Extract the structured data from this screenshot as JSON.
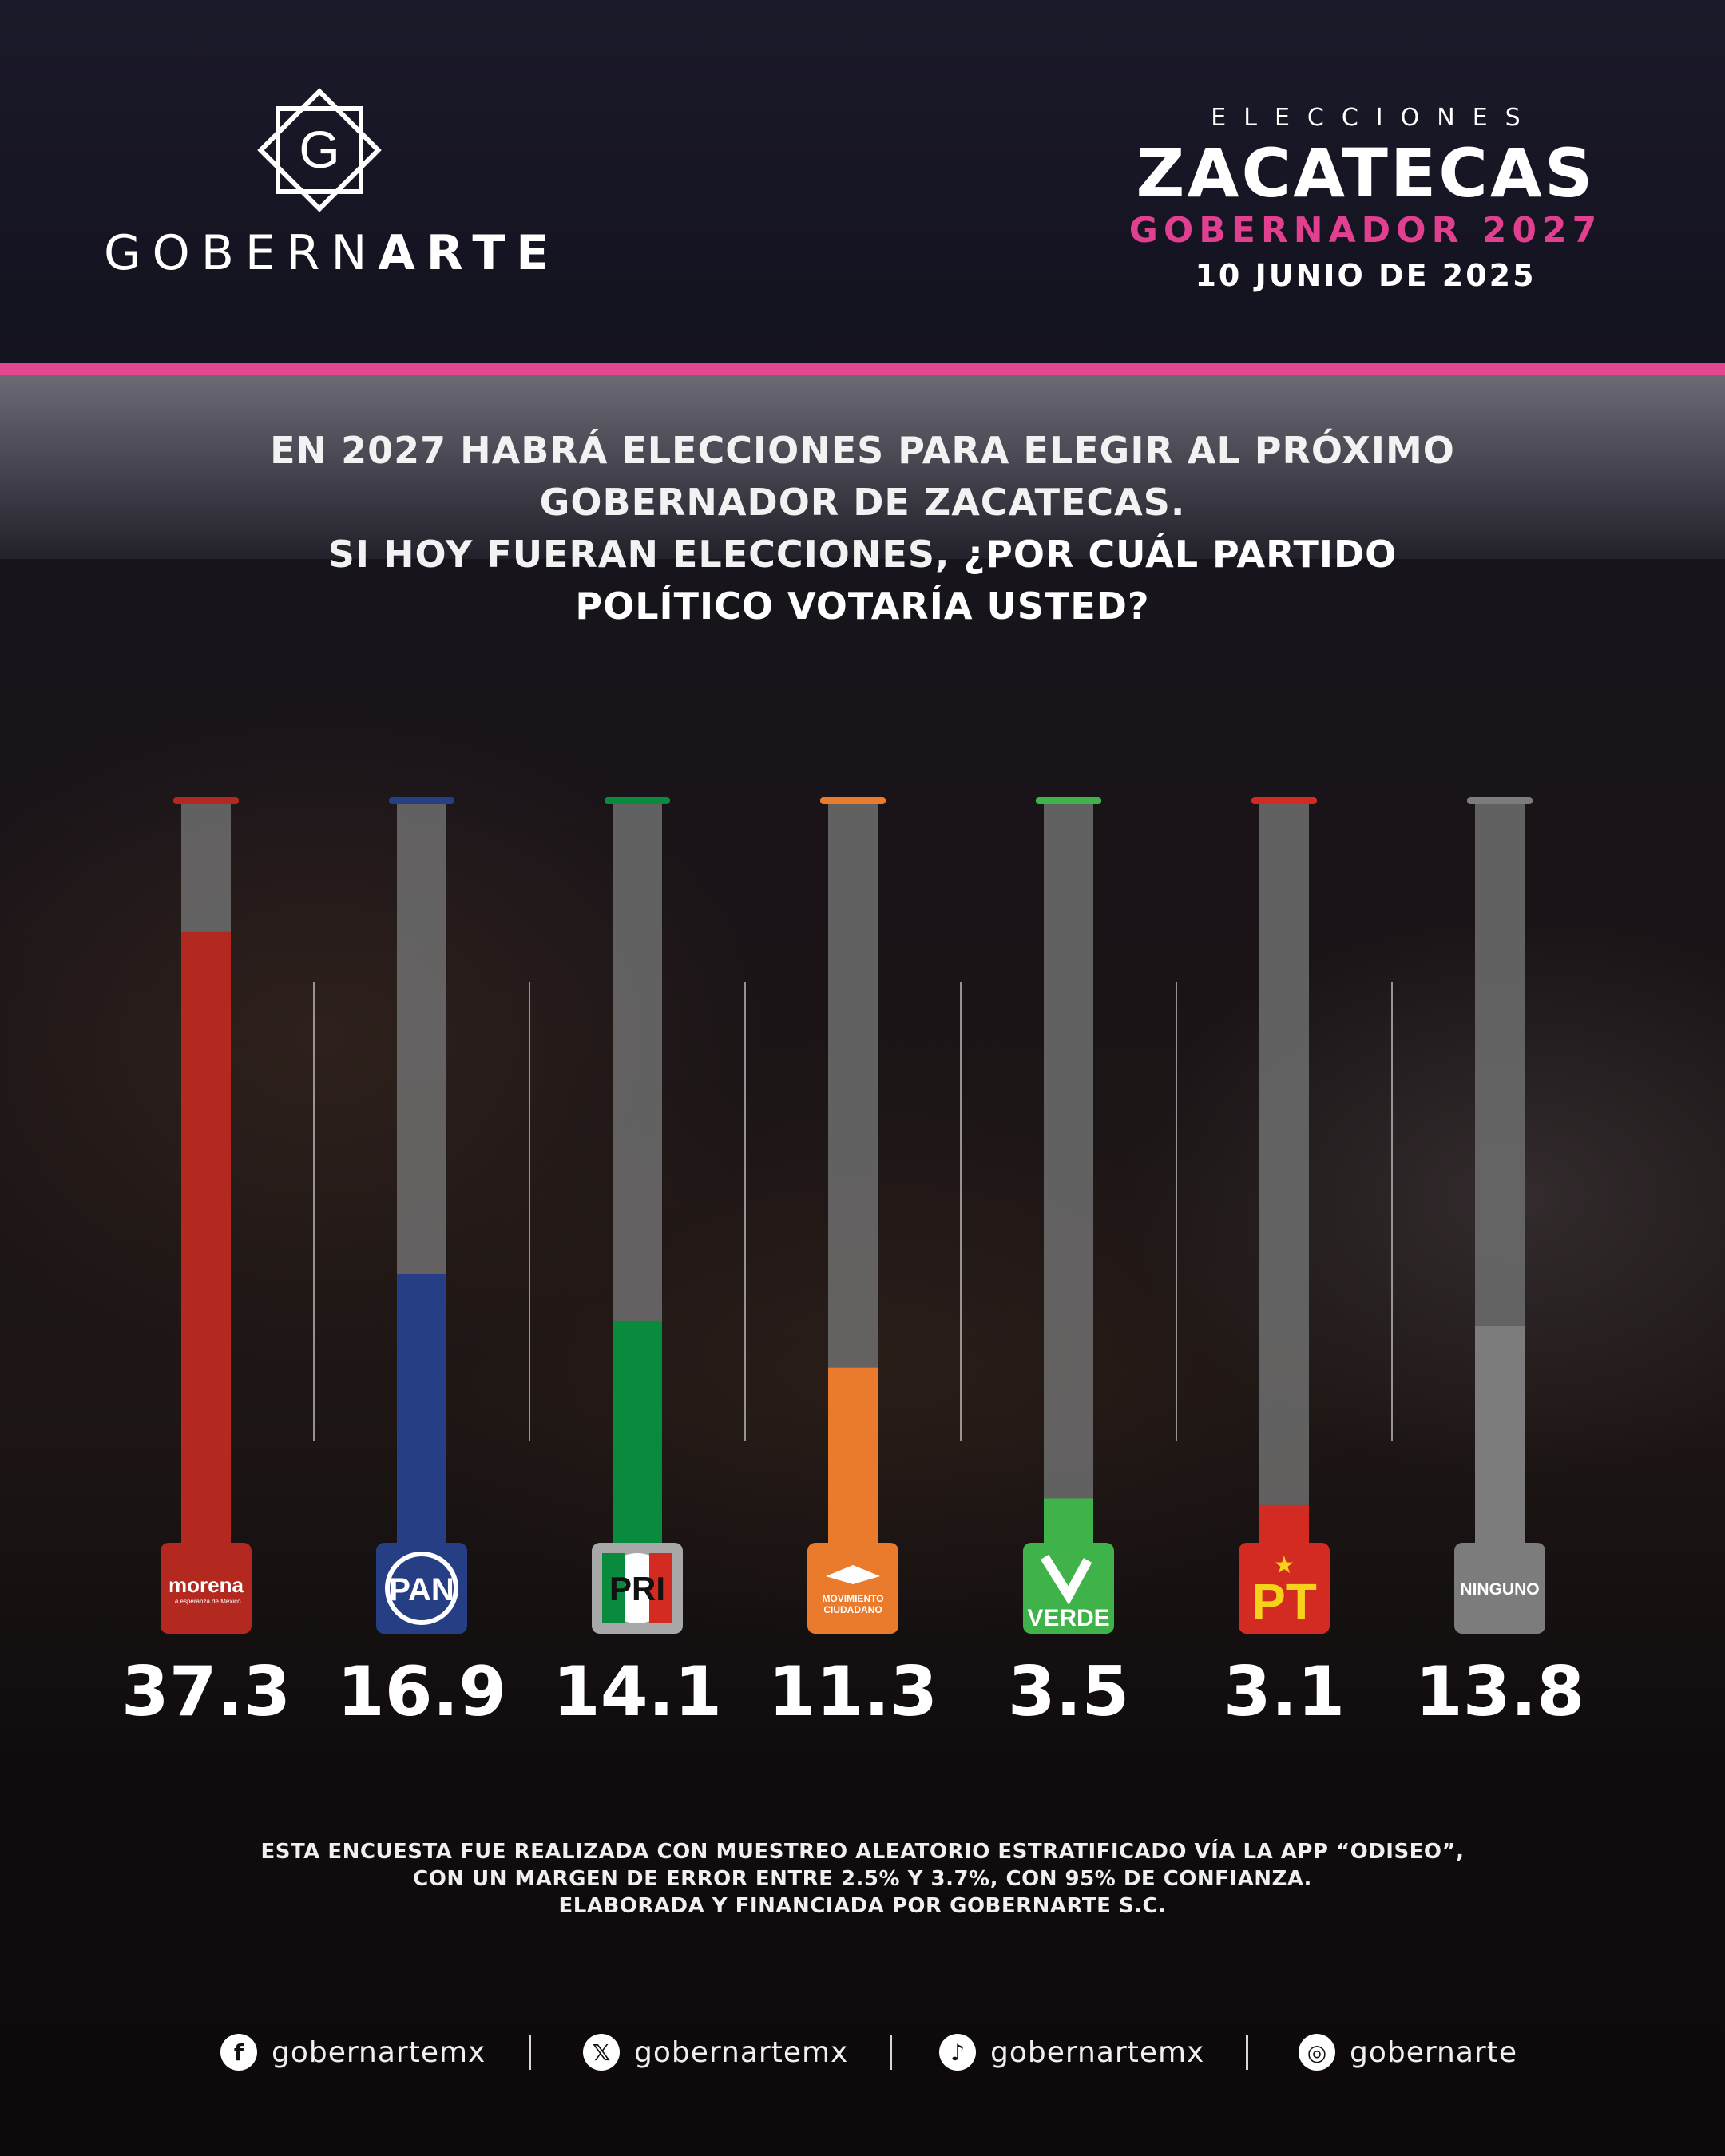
{
  "brand": {
    "logo_letter": "G",
    "wordmark_part1": "GOBERN",
    "wordmark_part2": "ARTE"
  },
  "header": {
    "kicker": "ELECCIONES",
    "state": "ZACATECAS",
    "office": "GOBERNADOR 2027",
    "date": "10 JUNIO DE 2025"
  },
  "question": {
    "line1": "EN 2027 HABRÁ ELECCIONES PARA ELEGIR AL PRÓXIMO",
    "line2": "GOBERNADOR DE ZACATECAS.",
    "line3": "SI HOY FUERAN ELECCIONES,",
    "line3_bold": "¿POR CUÁL PARTIDO",
    "line4": "POLÍTICO VOTARÍA USTED?"
  },
  "chart_data": {
    "type": "bar",
    "categories": [
      "morena",
      "PAN",
      "PRI",
      "MOVIMIENTO CIUDADANO",
      "VERDE",
      "PT",
      "NINGUNO"
    ],
    "values": [
      37.3,
      16.9,
      14.1,
      11.3,
      3.5,
      3.1,
      13.8
    ],
    "value_labels": [
      "37.3",
      "16.9",
      "14.1",
      "11.3",
      "3.5",
      "3.1",
      "13.8"
    ],
    "colors": [
      "#b4291f",
      "#263f84",
      "#0a8a3c",
      "#ea7a2c",
      "#3fb24a",
      "#d32a22",
      "#7c7c7c"
    ],
    "ylim": [
      0,
      45
    ],
    "logo_texts": {
      "morena_tagline": "La esperanza de México",
      "mc_line1": "MOVIMIENTO",
      "mc_line2": "CIUDADANO",
      "pri_r": "R",
      "pt_star": "★"
    }
  },
  "footer": {
    "note_line1_a": "ESTA ENCUESTA FUE REALIZADA CON MUESTREO ALEATORIO ESTRATIFICADO VÍA LA",
    "note_line1_b": "APP “ODISEO”",
    "note_line1_c": ",",
    "note_line2_a": "CON UN MARGEN DE ERROR ENTRE 2.5% Y 3.7%, CON",
    "note_line2_b": "95% DE CONFIANZA",
    "note_line2_c": ".",
    "note_line3_a": "ELABORADA Y FINANCIADA POR",
    "note_line3_b": "GOBERNARTE S.C."
  },
  "social": [
    {
      "icon": "facebook-icon",
      "glyph": "f",
      "handle": "gobernartemx"
    },
    {
      "icon": "x-icon",
      "glyph": "𝕏",
      "handle": "gobernartemx"
    },
    {
      "icon": "tiktok-icon",
      "glyph": "♪",
      "handle": "gobernartemx"
    },
    {
      "icon": "instagram-icon",
      "glyph": "◎",
      "handle": "gobernarte"
    }
  ]
}
